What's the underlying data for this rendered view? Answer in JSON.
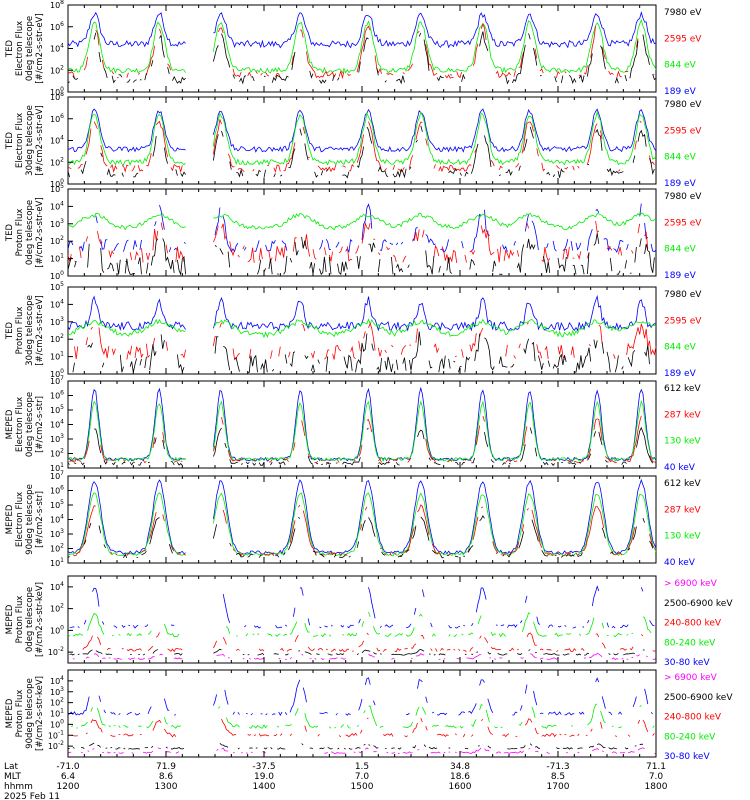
{
  "date_label": "2025 Feb 11",
  "axis_rows": {
    "labels": [
      "Lat",
      "MLT",
      "hhmm"
    ],
    "lat": [
      "-71.0",
      "71.9",
      "-37.5",
      "1.5",
      "34.8",
      "-71.3",
      "71.1"
    ],
    "mlt": [
      "6.4",
      "8.6",
      "19.0",
      "7.0",
      "18.6",
      "8.5",
      "7.0"
    ],
    "hhmm": [
      "1200",
      "1300",
      "1400",
      "1500",
      "1600",
      "1700",
      "1800"
    ]
  },
  "colors": {
    "blue": "#0000ff",
    "red": "#ff0000",
    "green": "#00ee00",
    "black": "#000000",
    "magenta": "#ff00ff"
  },
  "chart_data": [
    {
      "type": "line",
      "ylabel": [
        "TED",
        "Electron Flux",
        "0deg telescope",
        "[#/cm2-s-str-eV]"
      ],
      "ytick_exponents": [
        0,
        2,
        4,
        6,
        8
      ],
      "ylim_log10": [
        0,
        8
      ],
      "series": [
        {
          "name": "7980 eV",
          "color": "#000000"
        },
        {
          "name": "2595 eV",
          "color": "#ff0000"
        },
        {
          "name": "844 eV",
          "color": "#00ee00"
        },
        {
          "name": "189 eV",
          "color": "#0000ff"
        }
      ]
    },
    {
      "type": "line",
      "ylabel": [
        "TED",
        "Electron Flux",
        "30deg telescope",
        "[#/cm2-s-str-eV]"
      ],
      "ytick_exponents": [
        0,
        2,
        4,
        6,
        8
      ],
      "ylim_log10": [
        0,
        8
      ],
      "series": [
        {
          "name": "7980 eV",
          "color": "#000000"
        },
        {
          "name": "2595 eV",
          "color": "#ff0000"
        },
        {
          "name": "844 eV",
          "color": "#00ee00"
        },
        {
          "name": "189 eV",
          "color": "#0000ff"
        }
      ]
    },
    {
      "type": "line",
      "ylabel": [
        "TED",
        "Proton Flux",
        "0deg telescope",
        "[#/cm2-s-str-eV]"
      ],
      "ytick_exponents": [
        0,
        1,
        2,
        3,
        4,
        5
      ],
      "ylim_log10": [
        0,
        5
      ],
      "series": [
        {
          "name": "7980 eV",
          "color": "#000000"
        },
        {
          "name": "2595 eV",
          "color": "#ff0000"
        },
        {
          "name": "844 eV",
          "color": "#00ee00"
        },
        {
          "name": "189 eV",
          "color": "#0000ff"
        }
      ]
    },
    {
      "type": "line",
      "ylabel": [
        "TED",
        "Proton Flux",
        "30deg telescope",
        "[#/cm2-s-str-eV]"
      ],
      "ytick_exponents": [
        0,
        1,
        2,
        3,
        4,
        5
      ],
      "ylim_log10": [
        0,
        5
      ],
      "series": [
        {
          "name": "7980 eV",
          "color": "#000000"
        },
        {
          "name": "2595 eV",
          "color": "#ff0000"
        },
        {
          "name": "844 eV",
          "color": "#00ee00"
        },
        {
          "name": "189 eV",
          "color": "#0000ff"
        }
      ]
    },
    {
      "type": "line",
      "ylabel": [
        "MEPED",
        "Electron Flux",
        "0deg telescope",
        "[#/cm2-s-str]"
      ],
      "ytick_exponents": [
        1,
        2,
        3,
        4,
        5,
        6,
        7
      ],
      "ylim_log10": [
        1,
        7
      ],
      "series": [
        {
          "name": "612 keV",
          "color": "#000000"
        },
        {
          "name": "287 keV",
          "color": "#ff0000"
        },
        {
          "name": "130 keV",
          "color": "#00ee00"
        },
        {
          "name": "40 keV",
          "color": "#0000ff"
        }
      ]
    },
    {
      "type": "line",
      "ylabel": [
        "MEPED",
        "Electron Flux",
        "90deg telescope",
        "[#/cm2-s-str]"
      ],
      "ytick_exponents": [
        1,
        2,
        3,
        4,
        5,
        6,
        7
      ],
      "ylim_log10": [
        1,
        7
      ],
      "series": [
        {
          "name": "612 keV",
          "color": "#000000"
        },
        {
          "name": "287 keV",
          "color": "#ff0000"
        },
        {
          "name": "130 keV",
          "color": "#00ee00"
        },
        {
          "name": "40 keV",
          "color": "#0000ff"
        }
      ]
    },
    {
      "type": "line",
      "ylabel": [
        "MEPED",
        "Proton Flux",
        "0deg telescope",
        "[#/cm2-s-str-keV]"
      ],
      "ytick_exponents": [
        -2,
        0,
        2,
        4
      ],
      "ylim_log10": [
        -3,
        5
      ],
      "series": [
        {
          "name": "> 6900 keV",
          "color": "#ff00ff"
        },
        {
          "name": "2500-6900 keV",
          "color": "#000000"
        },
        {
          "name": "240-800 keV",
          "color": "#ff0000"
        },
        {
          "name": "80-240 keV",
          "color": "#00ee00"
        },
        {
          "name": "30-80 keV",
          "color": "#0000ff"
        }
      ]
    },
    {
      "type": "line",
      "ylabel": [
        "MEPED",
        "Proton Flux",
        "90deg telescope",
        "[#/cm2-s-str-keV]"
      ],
      "ytick_exponents": [
        -2,
        -1,
        0,
        1,
        2,
        3,
        4
      ],
      "ylim_log10": [
        -3,
        5
      ],
      "series": [
        {
          "name": "> 6900 keV",
          "color": "#ff00ff"
        },
        {
          "name": "2500-6900 keV",
          "color": "#000000"
        },
        {
          "name": "240-800 keV",
          "color": "#ff0000"
        },
        {
          "name": "80-240 keV",
          "color": "#00ee00"
        },
        {
          "name": "30-80 keV",
          "color": "#0000ff"
        }
      ]
    }
  ]
}
